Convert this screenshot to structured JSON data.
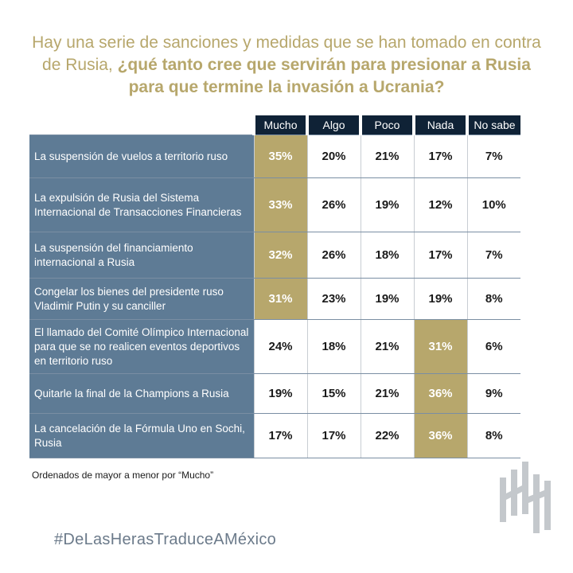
{
  "title": {
    "part1": "Hay una serie de sanciones y medidas que se han tomado en contra de Rusia, ",
    "part2": "¿qué tanto cree que servirán para presionar a Rusia para que termine la invasión a Ucrania?"
  },
  "footnote": "Ordenados de mayor a menor por “Mucho”",
  "hashtag": "#DeLasHerasTraduceAMéxico",
  "colors": {
    "gold": "#b7a76c",
    "navy": "#0f2236",
    "slate": "#5e7b95"
  },
  "logo": {
    "icon": "de-las-heras-logo-icon"
  },
  "chart_data": {
    "type": "table",
    "columns": [
      "Mucho",
      "Algo",
      "Poco",
      "Nada",
      "No sabe"
    ],
    "rows": [
      {
        "label": "La suspensión de vuelos a territorio ruso",
        "values": [
          "35%",
          "20%",
          "21%",
          "17%",
          "7%"
        ],
        "highlight": 0
      },
      {
        "label": "La expulsión de Rusia del Sistema Internacional de Transacciones Financieras",
        "values": [
          "33%",
          "26%",
          "19%",
          "12%",
          "10%"
        ],
        "highlight": 0
      },
      {
        "label": "La suspensión del financiamiento internacional a Rusia",
        "values": [
          "32%",
          "26%",
          "18%",
          "17%",
          "7%"
        ],
        "highlight": 0
      },
      {
        "label": "Congelar los bienes del presidente ruso Vladimir Putin y su canciller",
        "values": [
          "31%",
          "23%",
          "19%",
          "19%",
          "8%"
        ],
        "highlight": 0
      },
      {
        "label": "El llamado del Comité Olímpico Internacional para que se no realicen eventos deportivos en territorio ruso",
        "values": [
          "24%",
          "18%",
          "21%",
          "31%",
          "6%"
        ],
        "highlight": 3
      },
      {
        "label": "Quitarle la final de la Champions a Rusia",
        "values": [
          "19%",
          "15%",
          "21%",
          "36%",
          "9%"
        ],
        "highlight": 3
      },
      {
        "label": "La cancelación de la Fórmula Uno en Sochi, Rusia",
        "values": [
          "17%",
          "17%",
          "22%",
          "36%",
          "8%"
        ],
        "highlight": 3
      }
    ]
  }
}
